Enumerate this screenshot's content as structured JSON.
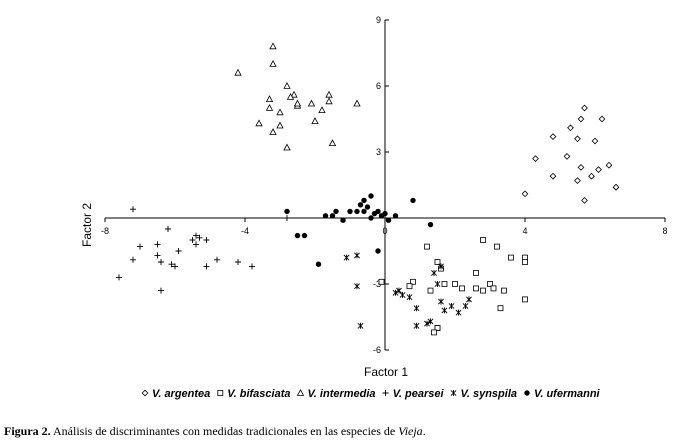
{
  "chart_data": {
    "type": "scatter",
    "xlabel": "Factor 1",
    "ylabel": "Factor 2",
    "xlim": [
      -8,
      8
    ],
    "ylim": [
      -6,
      9
    ],
    "xticks": [
      -8,
      -4,
      0,
      4,
      8
    ],
    "yticks": [
      -6,
      -3,
      0,
      3,
      6,
      9
    ],
    "grid": false,
    "legend": "bottom",
    "series": [
      {
        "name": "V. argentea",
        "marker": "diamond",
        "points": [
          [
            5.7,
            5.0
          ],
          [
            6.2,
            4.5
          ],
          [
            4.8,
            3.7
          ],
          [
            5.3,
            4.1
          ],
          [
            5.5,
            3.6
          ],
          [
            4.3,
            2.7
          ],
          [
            5.2,
            2.8
          ],
          [
            6.0,
            3.5
          ],
          [
            5.6,
            2.3
          ],
          [
            5.9,
            1.9
          ],
          [
            4.8,
            1.9
          ],
          [
            6.4,
            2.4
          ],
          [
            4.0,
            1.1
          ],
          [
            5.5,
            1.7
          ],
          [
            5.7,
            0.8
          ],
          [
            6.6,
            1.4
          ],
          [
            6.6,
            1.4
          ],
          [
            5.6,
            4.5
          ],
          [
            6.1,
            2.2
          ]
        ]
      },
      {
        "name": "V. bifasciata",
        "marker": "square",
        "points": [
          [
            1.2,
            -1.3
          ],
          [
            1.5,
            -2.0
          ],
          [
            1.6,
            -2.3
          ],
          [
            1.7,
            -3.0
          ],
          [
            1.3,
            -3.3
          ],
          [
            1.5,
            -5.0
          ],
          [
            1.5,
            -5.0
          ],
          [
            1.4,
            -5.2
          ],
          [
            0.8,
            -2.9
          ],
          [
            0.7,
            -3.1
          ],
          [
            2.0,
            -3.0
          ],
          [
            2.2,
            -3.2
          ],
          [
            2.6,
            -2.5
          ],
          [
            2.6,
            -3.2
          ],
          [
            2.8,
            -3.3
          ],
          [
            3.0,
            -3.0
          ],
          [
            3.1,
            -3.2
          ],
          [
            3.4,
            -3.3
          ],
          [
            3.6,
            -1.8
          ],
          [
            4.0,
            -1.8
          ],
          [
            4.0,
            -2.0
          ],
          [
            4.0,
            -3.7
          ],
          [
            3.3,
            -4.1
          ],
          [
            2.8,
            -1.0
          ],
          [
            3.2,
            -1.3
          ],
          [
            -0.1,
            -2.9
          ]
        ]
      },
      {
        "name": "V. intermedia",
        "marker": "triangle",
        "points": [
          [
            -3.2,
            7.8
          ],
          [
            -3.2,
            7.0
          ],
          [
            -4.2,
            6.6
          ],
          [
            -2.8,
            6.0
          ],
          [
            -3.3,
            5.4
          ],
          [
            -2.6,
            5.6
          ],
          [
            -2.5,
            5.1
          ],
          [
            -2.1,
            5.2
          ],
          [
            -2.0,
            4.4
          ],
          [
            -1.8,
            4.9
          ],
          [
            -1.6,
            5.6
          ],
          [
            -1.6,
            5.3
          ],
          [
            -3.0,
            4.8
          ],
          [
            -3.3,
            5.0
          ],
          [
            -3.0,
            4.2
          ],
          [
            -3.6,
            4.3
          ],
          [
            -3.2,
            3.9
          ],
          [
            -2.8,
            3.2
          ],
          [
            -1.5,
            3.4
          ],
          [
            -0.8,
            5.2
          ],
          [
            -2.5,
            5.2
          ],
          [
            -2.7,
            5.5
          ]
        ]
      },
      {
        "name": "V. pearsei",
        "marker": "plus",
        "points": [
          [
            -7.2,
            0.4
          ],
          [
            -7.6,
            -2.7
          ],
          [
            -7.0,
            -1.3
          ],
          [
            -7.2,
            -1.9
          ],
          [
            -6.5,
            -1.7
          ],
          [
            -6.5,
            -1.2
          ],
          [
            -6.4,
            -2.0
          ],
          [
            -6.1,
            -2.1
          ],
          [
            -6.0,
            -2.2
          ],
          [
            -6.2,
            -0.5
          ],
          [
            -5.9,
            -1.5
          ],
          [
            -5.5,
            -1.0
          ],
          [
            -5.4,
            -1.2
          ],
          [
            -5.3,
            -0.9
          ],
          [
            -5.1,
            -2.2
          ],
          [
            -4.8,
            -1.9
          ],
          [
            -4.2,
            -2.0
          ],
          [
            -3.8,
            -2.2
          ],
          [
            -6.4,
            -3.3
          ],
          [
            -2.8,
            0.0
          ],
          [
            -5.1,
            -1.0
          ],
          [
            -5.4,
            -0.8
          ]
        ]
      },
      {
        "name": "V. synspila",
        "marker": "star",
        "points": [
          [
            -1.1,
            -1.8
          ],
          [
            -0.8,
            -1.7
          ],
          [
            -0.8,
            -3.1
          ],
          [
            -0.7,
            -4.9
          ],
          [
            0.3,
            -3.4
          ],
          [
            0.5,
            -3.5
          ],
          [
            0.7,
            -3.6
          ],
          [
            0.9,
            -4.1
          ],
          [
            1.2,
            -4.8
          ],
          [
            1.3,
            -4.7
          ],
          [
            1.4,
            -2.5
          ],
          [
            1.5,
            -3.0
          ],
          [
            1.6,
            -3.8
          ],
          [
            1.7,
            -4.2
          ],
          [
            1.9,
            -4.0
          ],
          [
            2.1,
            -4.3
          ],
          [
            2.3,
            -4.0
          ],
          [
            2.4,
            -3.7
          ],
          [
            1.6,
            -2.2
          ],
          [
            0.9,
            -4.9
          ],
          [
            0.4,
            -3.3
          ]
        ]
      },
      {
        "name": "V. ufermanni",
        "marker": "dot",
        "points": [
          [
            -2.8,
            0.3
          ],
          [
            -2.5,
            -0.8
          ],
          [
            -2.3,
            -0.8
          ],
          [
            -1.7,
            0.1
          ],
          [
            -1.5,
            0.1
          ],
          [
            -1.4,
            0.3
          ],
          [
            -1.2,
            -0.1
          ],
          [
            -1.0,
            0.3
          ],
          [
            -0.8,
            0.3
          ],
          [
            -0.7,
            0.6
          ],
          [
            -0.6,
            0.3
          ],
          [
            -0.5,
            0.5
          ],
          [
            -0.4,
            0.0
          ],
          [
            -0.3,
            0.2
          ],
          [
            -0.2,
            0.3
          ],
          [
            -0.1,
            0.1
          ],
          [
            0.0,
            0.2
          ],
          [
            0.1,
            -0.1
          ],
          [
            0.3,
            0.1
          ],
          [
            0.8,
            0.8
          ],
          [
            -0.4,
            1.0
          ],
          [
            -0.2,
            -1.5
          ],
          [
            -1.9,
            -2.1
          ],
          [
            1.3,
            -0.3
          ],
          [
            -0.6,
            0.8
          ]
        ]
      }
    ]
  },
  "caption": {
    "label": "Figura 2.",
    "text": " Análisis de discriminantes con medidas tradicionales en las especies de ",
    "genus": "Vieja",
    "end": "."
  }
}
